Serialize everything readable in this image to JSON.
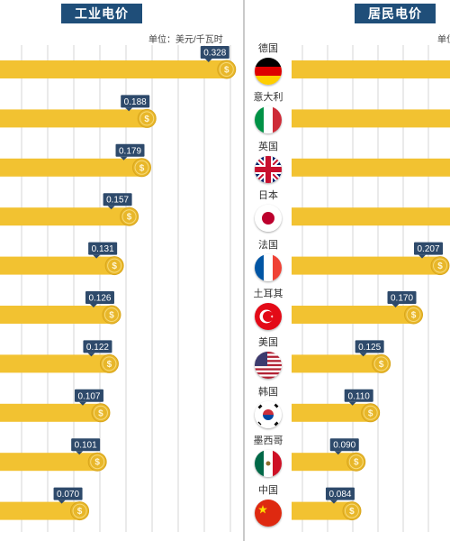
{
  "unit": "单位：美元/千瓦时",
  "countries": [
    "德国",
    "意大利",
    "英国",
    "日本",
    "法国",
    "土耳其",
    "美国",
    "韩国",
    "墨西哥",
    "中国"
  ],
  "colors": {
    "bar": "#f2c231",
    "coin": "#e8b72a",
    "label_bg": "#2e4a6b",
    "label_text": "#ffffff",
    "title_bg": "#1f4e79"
  },
  "icon_names": {
    "coin": "dollar-coin-icon",
    "flags": [
      "germany-flag-icon",
      "italy-flag-icon",
      "uk-flag-icon",
      "japan-flag-icon",
      "france-flag-icon",
      "turkey-flag-icon",
      "usa-flag-icon",
      "south-korea-flag-icon",
      "mexico-flag-icon",
      "china-flag-icon"
    ]
  },
  "chart_data": [
    {
      "type": "bar",
      "orientation": "horizontal",
      "title": "工业电价",
      "unit": "单位：美元/千瓦时",
      "categories": [
        "",
        "",
        "",
        "",
        "",
        "",
        "",
        "",
        "",
        ""
      ],
      "values": [
        0.328,
        0.188,
        0.179,
        0.157,
        0.131,
        0.126,
        0.122,
        0.107,
        0.101,
        0.07
      ],
      "value_labels": [
        "0.328",
        "0.188",
        "0.179",
        "0.157",
        "0.131",
        "0.126",
        "0.122",
        "0.107",
        "0.101",
        "0.070"
      ],
      "xlim": [
        -0.07,
        0.36
      ],
      "grid": true
    },
    {
      "type": "bar",
      "orientation": "horizontal",
      "title": "居民电价",
      "categories": [
        "德国",
        "意大利",
        "英国",
        "日本",
        "法国",
        "土耳其",
        "美国",
        "韩国",
        "墨西哥",
        "中国"
      ],
      "values": [
        null,
        null,
        null,
        null,
        0.207,
        0.17,
        0.125,
        0.11,
        0.09,
        0.084
      ],
      "value_labels": [
        "",
        "",
        "",
        "",
        "0.207",
        "0.170",
        "0.125",
        "0.110",
        "0.090",
        "0.084"
      ],
      "xlim": [
        0,
        0.207
      ],
      "grid": true,
      "note": "top four bars cropped at right edge; values not visible"
    }
  ]
}
